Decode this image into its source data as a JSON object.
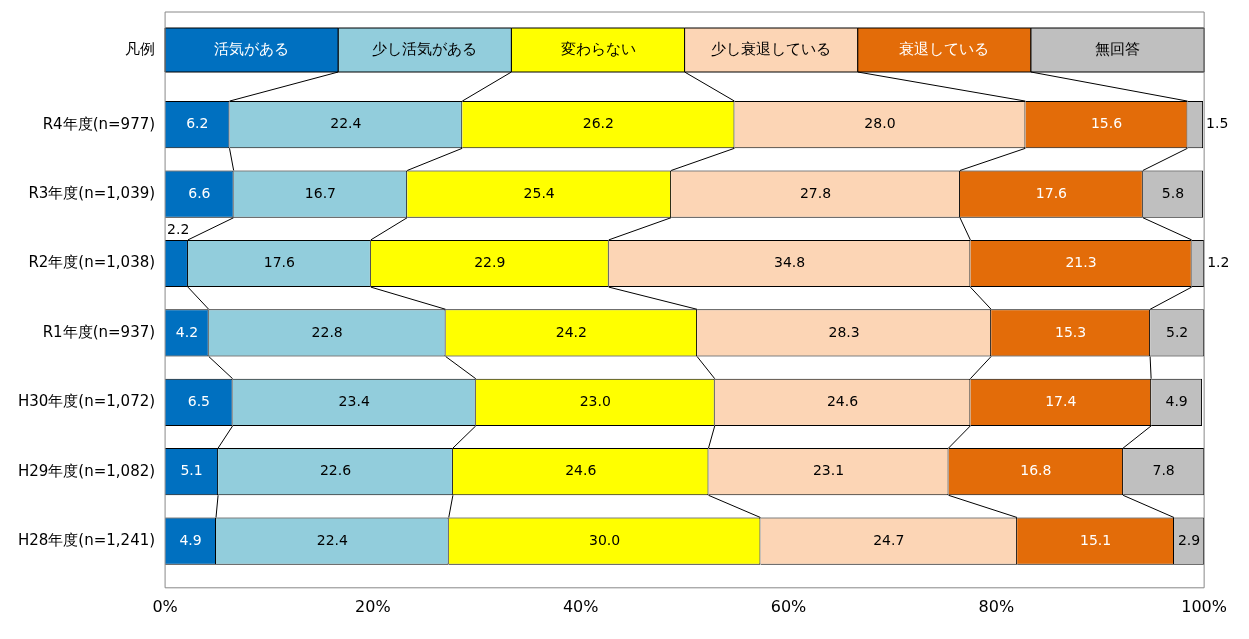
{
  "chart_data": {
    "type": "bar",
    "orientation": "horizontal",
    "stacked": true,
    "legend": "top",
    "legend_title": "凡例",
    "grid": false,
    "categories": [
      "R4年度(n=977)",
      "R3年度(n=1,039)",
      "R2年度(n=1,038)",
      "R1年度(n=937)",
      "H30年度(n=1,072)",
      "H29年度(n=1,082)",
      "H28年度(n=1,241)"
    ],
    "xlim": [
      0,
      100
    ],
    "xticks": [
      {
        "value": 0,
        "label": "0%"
      },
      {
        "value": 20,
        "label": "20%"
      },
      {
        "value": 40,
        "label": "40%"
      },
      {
        "value": 60,
        "label": "60%"
      },
      {
        "value": 80,
        "label": "80%"
      },
      {
        "value": 100,
        "label": "100%"
      }
    ],
    "series": [
      {
        "name": "活気がある",
        "color": "#0070c0",
        "values": [
          6.2,
          6.6,
          2.2,
          4.2,
          6.5,
          5.1,
          4.9
        ],
        "value_labels": [
          "6.2",
          "6.6",
          "2.2",
          "4.2",
          "6.5",
          "5.1",
          "4.9"
        ]
      },
      {
        "name": "少し活気がある",
        "color": "#92cddc",
        "values": [
          22.4,
          16.7,
          17.6,
          22.8,
          23.4,
          22.6,
          22.4
        ],
        "value_labels": [
          "22.4",
          "16.7",
          "17.6",
          "22.8",
          "23.4",
          "22.6",
          "22.4"
        ]
      },
      {
        "name": "変わらない",
        "color": "#ffff00",
        "values": [
          26.2,
          25.4,
          22.9,
          24.2,
          23.0,
          24.6,
          30.0
        ],
        "value_labels": [
          "26.2",
          "25.4",
          "22.9",
          "24.2",
          "23.0",
          "24.6",
          "30.0"
        ]
      },
      {
        "name": "少し衰退している",
        "color": "#fcd5b5",
        "values": [
          28.0,
          27.8,
          34.8,
          28.3,
          24.6,
          23.1,
          24.7
        ],
        "value_labels": [
          "28.0",
          "27.8",
          "34.8",
          "28.3",
          "24.6",
          "23.1",
          "24.7"
        ]
      },
      {
        "name": "衰退している",
        "color": "#e36c09",
        "values": [
          15.6,
          17.6,
          21.3,
          15.3,
          17.4,
          16.8,
          15.1
        ],
        "value_labels": [
          "15.6",
          "17.6",
          "21.3",
          "15.3",
          "17.4",
          "16.8",
          "15.1"
        ]
      },
      {
        "name": "無回答",
        "color": "#bfbfbf",
        "values": [
          1.5,
          5.8,
          1.2,
          5.2,
          4.9,
          7.8,
          2.9
        ],
        "value_labels": [
          "1.5",
          "5.8",
          "1.2",
          "5.2",
          "4.9",
          "7.8",
          "2.9"
        ]
      }
    ]
  }
}
